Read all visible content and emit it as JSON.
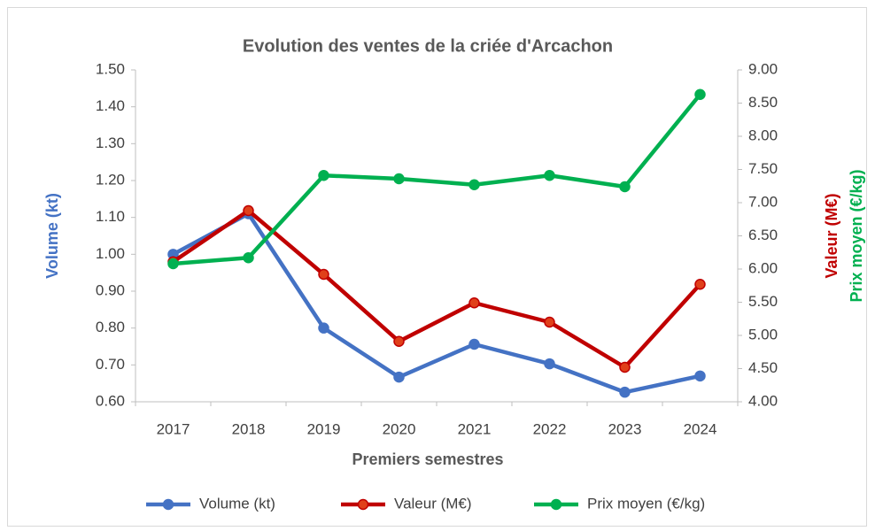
{
  "chart_data": {
    "type": "line",
    "title": "Evolution des ventes de la criée d'Arcachon",
    "xlabel": "Premiers semestres",
    "ylabel": "Volume (kt)",
    "y2labels": [
      "Valeur (M€)",
      "Prix moyen (€/kg)"
    ],
    "categories": [
      "2017",
      "2018",
      "2019",
      "2020",
      "2021",
      "2022",
      "2023",
      "2024"
    ],
    "series": [
      {
        "name": "Volume (kt)",
        "color": "#4472c4",
        "values": [
          1.0,
          1.11,
          0.8,
          0.667,
          0.756,
          0.703,
          0.626,
          0.67
        ]
      },
      {
        "name": "Valeur (M€)",
        "color": "#c00000",
        "axis": "y2",
        "values": [
          6.11,
          6.88,
          5.92,
          4.91,
          5.49,
          5.2,
          4.52,
          5.77
        ]
      },
      {
        "name": "Prix moyen (€/kg)",
        "color": "#00b050",
        "axis": "y2",
        "values": [
          6.08,
          6.17,
          7.41,
          7.36,
          7.27,
          7.41,
          7.24,
          8.63
        ]
      }
    ],
    "ylim": [
      0.6,
      1.5
    ],
    "yticks": [
      {
        "value": 0.6,
        "label": "0.60"
      },
      {
        "value": 0.7,
        "label": "0.70"
      },
      {
        "value": 0.8,
        "label": "0.80"
      },
      {
        "value": 0.9,
        "label": "0.90"
      },
      {
        "value": 1.0,
        "label": "1.00"
      },
      {
        "value": 1.1,
        "label": "1.10"
      },
      {
        "value": 1.2,
        "label": "1.20"
      },
      {
        "value": 1.3,
        "label": "1.30"
      },
      {
        "value": 1.4,
        "label": "1.40"
      },
      {
        "value": 1.5,
        "label": "1.50"
      }
    ],
    "y2lim": [
      4,
      9
    ],
    "y2ticks": [
      {
        "value": 4,
        "label": "4.00"
      },
      {
        "value": 4.5,
        "label": "4.50"
      },
      {
        "value": 5,
        "label": "5.00"
      },
      {
        "value": 5.5,
        "label": "5.50"
      },
      {
        "value": 6,
        "label": "6.00"
      },
      {
        "value": 6.5,
        "label": "6.50"
      },
      {
        "value": 7,
        "label": "7.00"
      },
      {
        "value": 7.5,
        "label": "7.50"
      },
      {
        "value": 8,
        "label": "8.00"
      },
      {
        "value": 8.5,
        "label": "8.50"
      },
      {
        "value": 9,
        "label": "9.00"
      }
    ],
    "grid": false,
    "legend": "bottom"
  }
}
